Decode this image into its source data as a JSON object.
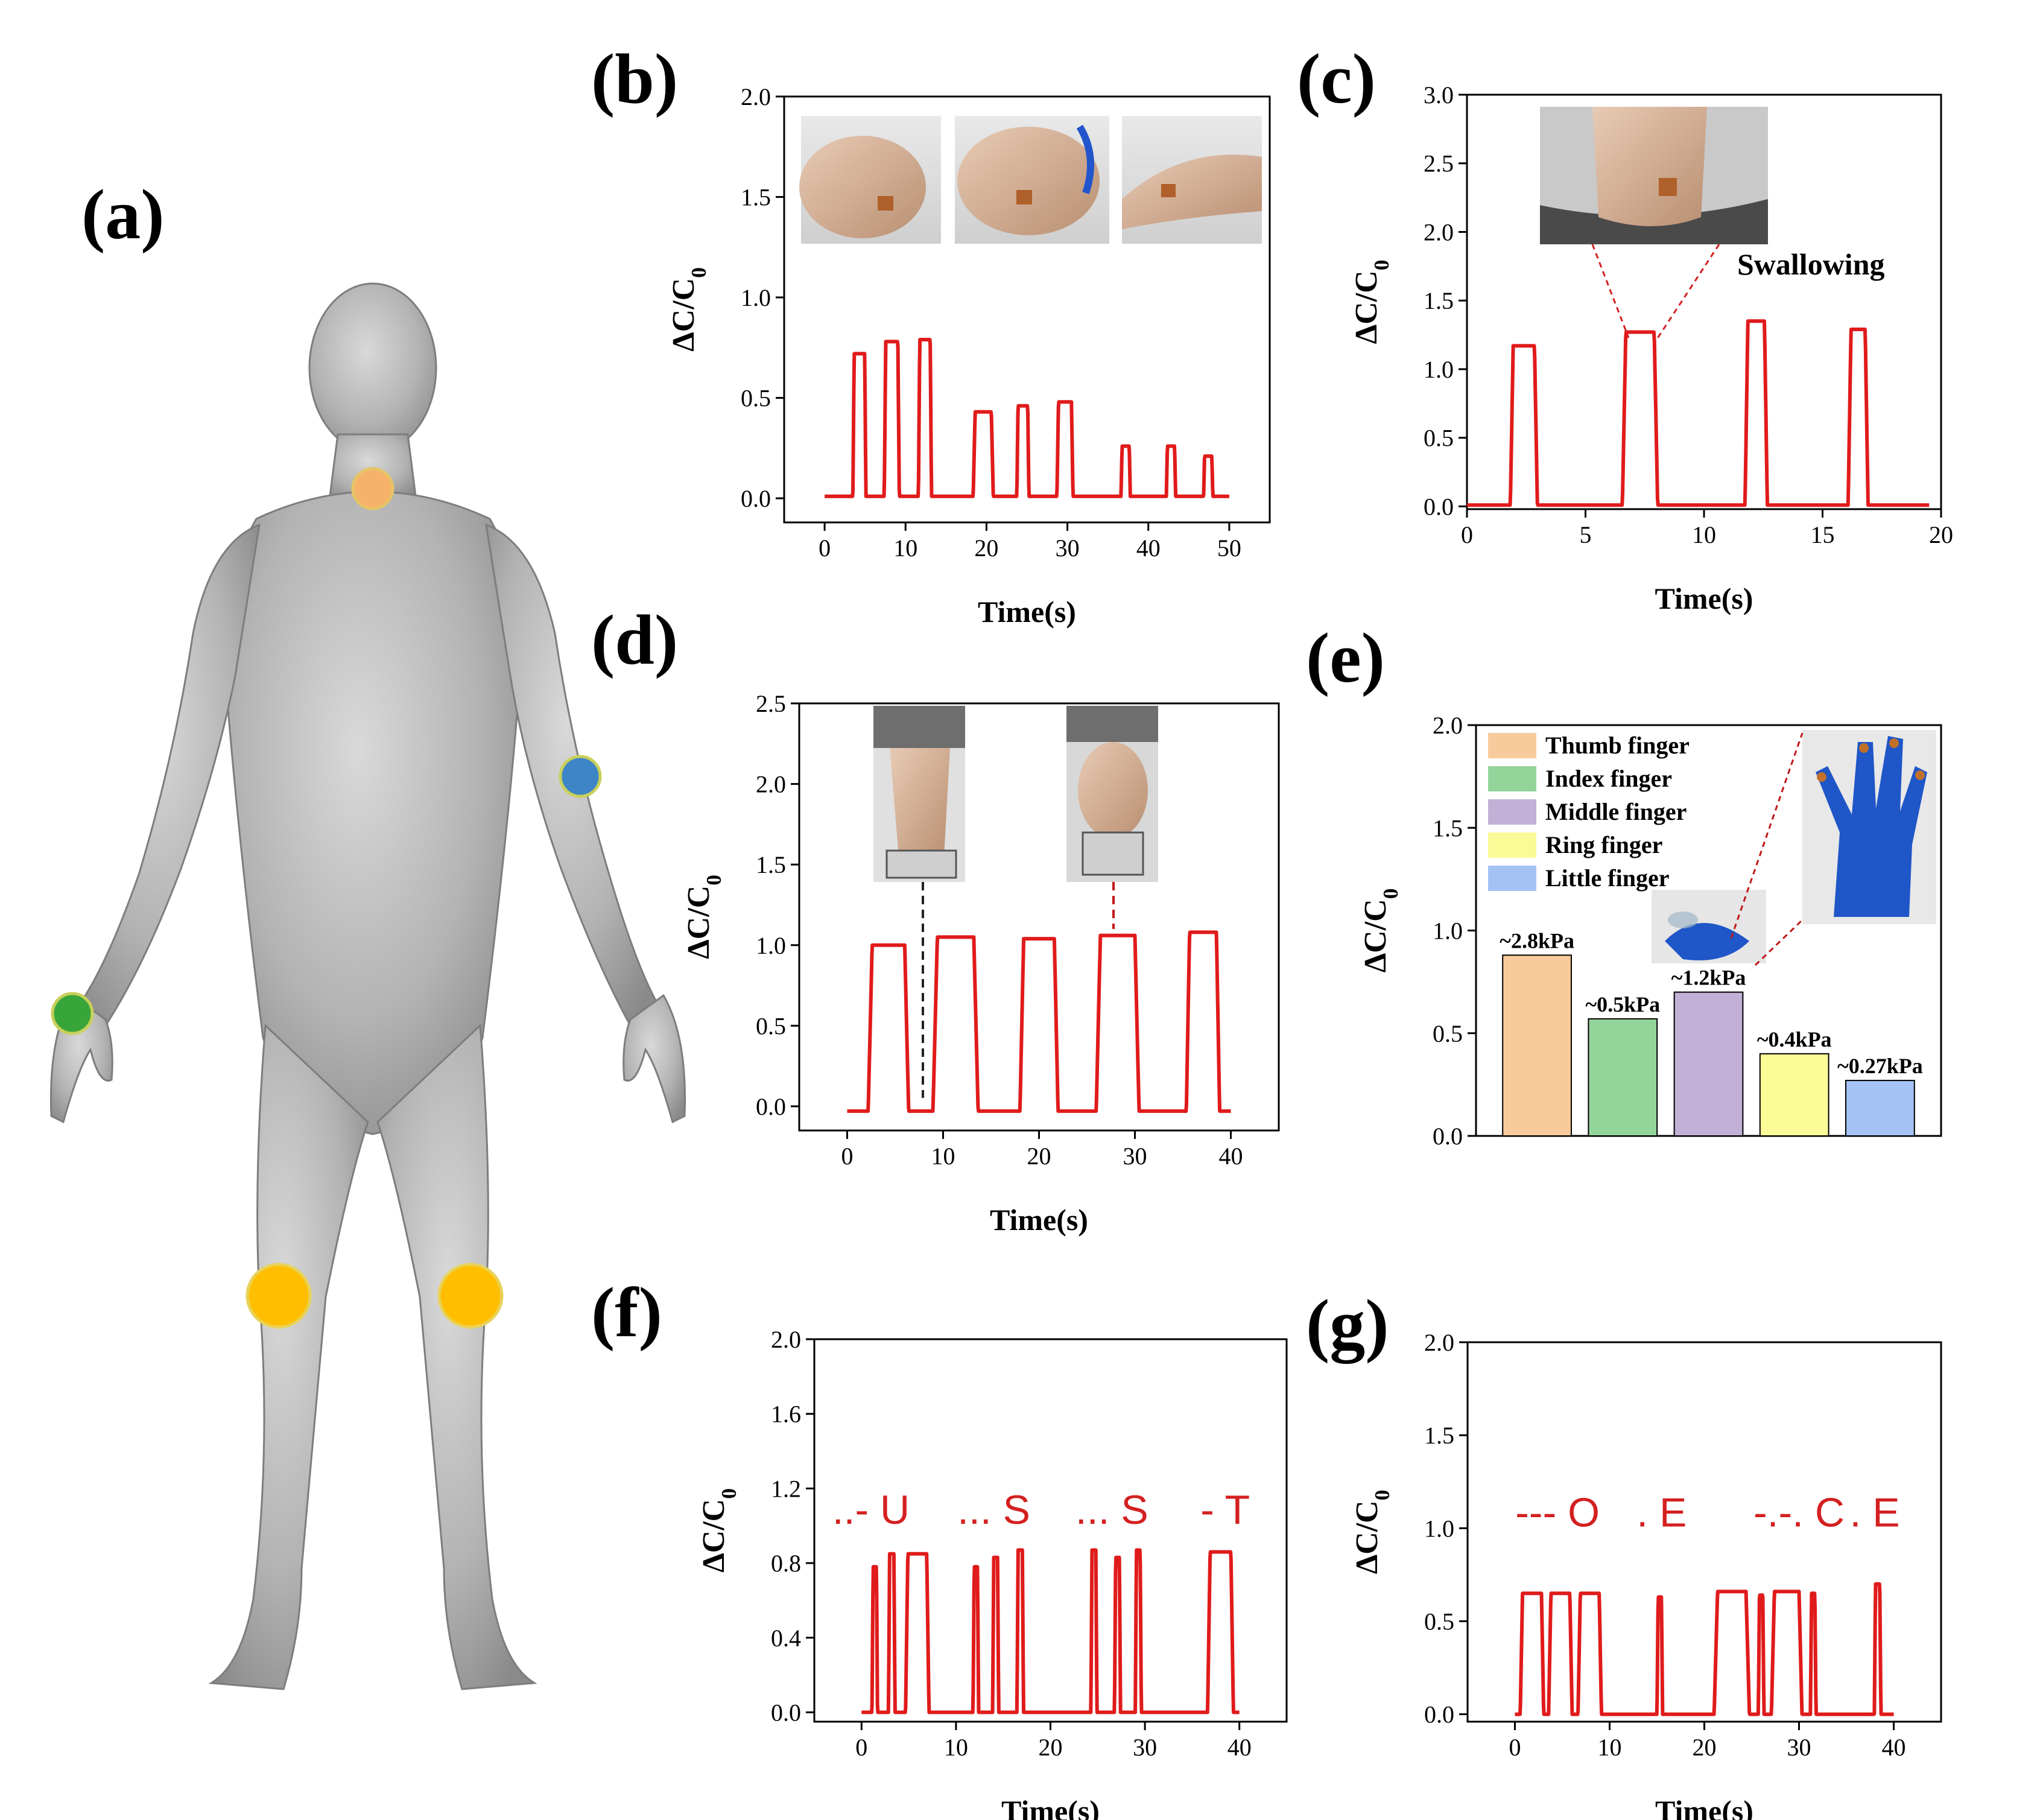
{
  "figure": {
    "panel_labels": [
      "(a)",
      "(b)",
      "(c)",
      "(d)",
      "(e)",
      "(f)",
      "(g)"
    ]
  },
  "colors": {
    "signal": "#e01b1b",
    "neck_dot": "#f6b26b",
    "arm_dot": "#3d85c6",
    "wrist_dot": "#38a53a",
    "knee_dot": "#ffbf00",
    "thumb": "#f9cb9c",
    "index": "#93d49a",
    "middle": "#c2b0d6",
    "ring": "#fafa96",
    "little": "#a4c2f4"
  },
  "chart_data": [
    {
      "panel": "(b)",
      "type": "line",
      "xlabel": "Time(s)",
      "ylabel": "ΔC/C0",
      "xlim": [
        -5,
        55
      ],
      "ylim": [
        -0.12,
        2.0
      ],
      "xticks": [
        0,
        10,
        20,
        30,
        40,
        50
      ],
      "yticks": [
        "0.0",
        "0.5",
        "1.0",
        "1.5",
        "2.0"
      ],
      "pulse_base": 0.01,
      "pulses": [
        {
          "c": 4.3,
          "h": 0.72,
          "w": 1.3
        },
        {
          "c": 8.3,
          "h": 0.78,
          "w": 1.5
        },
        {
          "c": 12.4,
          "h": 0.79,
          "w": 1.3
        },
        {
          "c": 19.6,
          "h": 0.43,
          "w": 2.0
        },
        {
          "c": 24.5,
          "h": 0.46,
          "w": 1.2
        },
        {
          "c": 29.7,
          "h": 0.48,
          "w": 1.6
        },
        {
          "c": 37.2,
          "h": 0.26,
          "w": 0.9
        },
        {
          "c": 42.8,
          "h": 0.26,
          "w": 0.9
        },
        {
          "c": 47.4,
          "h": 0.21,
          "w": 0.9
        }
      ],
      "x_end": 50
    },
    {
      "panel": "(c)",
      "type": "line",
      "xlabel": "Time(s)",
      "ylabel": "ΔC/C0",
      "annotation": "Swallowing",
      "xlim": [
        0,
        20
      ],
      "ylim": [
        -0.02,
        3.0
      ],
      "xticks": [
        0,
        5,
        10,
        15,
        20
      ],
      "yticks": [
        "0.0",
        "0.5",
        "1.0",
        "1.5",
        "2.0",
        "2.5",
        "3.0"
      ],
      "pulse_base": 0.01,
      "pulses": [
        {
          "c": 2.4,
          "h": 1.17,
          "w": 0.9
        },
        {
          "c": 7.3,
          "h": 1.27,
          "w": 1.2
        },
        {
          "c": 12.2,
          "h": 1.35,
          "w": 0.7
        },
        {
          "c": 16.5,
          "h": 1.29,
          "w": 0.6
        }
      ],
      "x_end": 19.5
    },
    {
      "panel": "(d)",
      "type": "line",
      "xlabel": "Time(s)",
      "ylabel": "ΔC/C0",
      "xlim": [
        -5,
        45
      ],
      "ylim": [
        -0.15,
        2.5
      ],
      "xticks": [
        0,
        10,
        20,
        30,
        40
      ],
      "yticks": [
        "0.0",
        "0.5",
        "1.0",
        "1.5",
        "2.0",
        "2.5"
      ],
      "pulse_base": -0.03,
      "pulses": [
        {
          "c": 4.3,
          "h": 1.0,
          "w": 3.4
        },
        {
          "c": 11.3,
          "h": 1.05,
          "w": 3.8
        },
        {
          "c": 20.0,
          "h": 1.04,
          "w": 3.2
        },
        {
          "c": 28.2,
          "h": 1.06,
          "w": 3.6
        },
        {
          "c": 37.1,
          "h": 1.08,
          "w": 2.8
        }
      ],
      "x_end": 40
    },
    {
      "panel": "(e)",
      "type": "bar",
      "ylabel": "ΔC/C0",
      "ylim": [
        0.0,
        2.0
      ],
      "yticks": [
        "0.0",
        "0.5",
        "1.0",
        "1.5",
        "2.0"
      ],
      "categories": [
        "Thumb finger",
        "Index finger",
        "Middle finger",
        "Ring finger",
        "Little finger"
      ],
      "values": [
        0.88,
        0.57,
        0.7,
        0.4,
        0.27
      ],
      "bar_labels": [
        "~2.8kPa",
        "~0.5kPa",
        "~1.2kPa",
        "~0.4kPa",
        "~0.27kPa"
      ],
      "legend_position": "top-left"
    },
    {
      "panel": "(f)",
      "type": "line",
      "xlabel": "Time(s)",
      "ylabel": "ΔC/C0",
      "xlim": [
        -5,
        45
      ],
      "ylim": [
        -0.05,
        2.0
      ],
      "xticks": [
        0,
        10,
        20,
        30,
        40
      ],
      "yticks": [
        "0.0",
        "0.4",
        "0.8",
        "1.2",
        "1.6",
        "2.0"
      ],
      "morse_text": [
        {
          "x": 1.0,
          "t": "..- U"
        },
        {
          "x": 14.0,
          "t": "... S"
        },
        {
          "x": 26.5,
          "t": "... S"
        },
        {
          "x": 38.5,
          "t": "- T"
        }
      ],
      "pulse_base": 0.0,
      "pulses": [
        {
          "c": 1.4,
          "h": 0.78,
          "w": 0.35
        },
        {
          "c": 3.2,
          "h": 0.85,
          "w": 0.45
        },
        {
          "c": 5.9,
          "h": 0.85,
          "w": 2.0
        },
        {
          "c": 12.1,
          "h": 0.78,
          "w": 0.35
        },
        {
          "c": 14.2,
          "h": 0.83,
          "w": 0.4
        },
        {
          "c": 16.8,
          "h": 0.87,
          "w": 0.45
        },
        {
          "c": 24.6,
          "h": 0.87,
          "w": 0.4
        },
        {
          "c": 27.1,
          "h": 0.83,
          "w": 0.4
        },
        {
          "c": 29.3,
          "h": 0.87,
          "w": 0.4
        },
        {
          "c": 38.0,
          "h": 0.86,
          "w": 2.2
        }
      ],
      "x_end": 40
    },
    {
      "panel": "(g)",
      "type": "line",
      "xlabel": "Time(s)",
      "ylabel": "ΔC/C0",
      "xlim": [
        -5,
        45
      ],
      "ylim": [
        -0.04,
        2.0
      ],
      "xticks": [
        0,
        10,
        20,
        30,
        40
      ],
      "yticks": [
        "0.0",
        "0.5",
        "1.0",
        "1.5",
        "2.0"
      ],
      "morse_text": [
        {
          "x": 4.5,
          "t": "--- O"
        },
        {
          "x": 15.5,
          "t": ". E"
        },
        {
          "x": 30.0,
          "t": "-.-. C"
        },
        {
          "x": 38.0,
          "t": ". E"
        }
      ],
      "pulse_base": 0.0,
      "pulses": [
        {
          "c": 1.8,
          "h": 0.65,
          "w": 2.0
        },
        {
          "c": 4.8,
          "h": 0.65,
          "w": 2.0
        },
        {
          "c": 7.9,
          "h": 0.65,
          "w": 2.0
        },
        {
          "c": 15.3,
          "h": 0.63,
          "w": 0.35
        },
        {
          "c": 22.9,
          "h": 0.66,
          "w": 3.0
        },
        {
          "c": 26.0,
          "h": 0.64,
          "w": 0.35
        },
        {
          "c": 28.7,
          "h": 0.66,
          "w": 2.6
        },
        {
          "c": 31.5,
          "h": 0.65,
          "w": 0.35
        },
        {
          "c": 38.3,
          "h": 0.7,
          "w": 0.45
        }
      ],
      "x_end": 40
    }
  ]
}
